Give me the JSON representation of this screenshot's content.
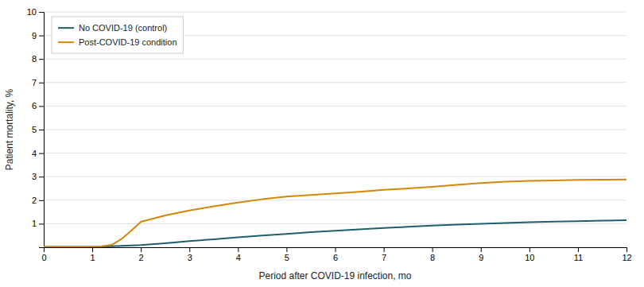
{
  "chart_data": {
    "type": "line",
    "xlabel": "Period after COVID-19 infection, mo",
    "ylabel": "Patient mortality, %",
    "series": [
      {
        "name": "No COVID-19 (control)",
        "color": "#1d5f6b",
        "x": [
          0,
          0.5,
          1.0,
          1.25,
          1.5,
          2.0,
          2.5,
          3.0,
          3.5,
          4.0,
          4.5,
          5.0,
          5.5,
          6.0,
          6.5,
          7.0,
          7.5,
          8.0,
          8.5,
          9.0,
          9.5,
          10.0,
          10.5,
          11.0,
          11.5,
          12.0
        ],
        "values": [
          0.02,
          0.02,
          0.02,
          0.03,
          0.05,
          0.09,
          0.17,
          0.26,
          0.34,
          0.42,
          0.5,
          0.57,
          0.64,
          0.7,
          0.76,
          0.82,
          0.87,
          0.92,
          0.96,
          1.0,
          1.03,
          1.06,
          1.09,
          1.11,
          1.13,
          1.15
        ]
      },
      {
        "name": "Post-COVID-19 condition",
        "color": "#d4860a",
        "x": [
          0,
          0.5,
          1.0,
          1.2,
          1.4,
          1.6,
          1.8,
          2.0,
          2.5,
          3.0,
          3.5,
          4.0,
          4.5,
          5.0,
          5.5,
          6.0,
          6.5,
          7.0,
          7.5,
          8.0,
          8.5,
          9.0,
          9.5,
          10.0,
          10.5,
          11.0,
          11.5,
          12.0
        ],
        "values": [
          0.02,
          0.02,
          0.02,
          0.04,
          0.1,
          0.35,
          0.7,
          1.08,
          1.35,
          1.56,
          1.74,
          1.9,
          2.04,
          2.15,
          2.22,
          2.29,
          2.36,
          2.44,
          2.5,
          2.57,
          2.65,
          2.73,
          2.79,
          2.82,
          2.84,
          2.86,
          2.87,
          2.88
        ]
      }
    ],
    "xlim": [
      0,
      12
    ],
    "xticks": [
      0,
      1,
      2,
      3,
      4,
      5,
      6,
      7,
      8,
      9,
      10,
      11,
      12
    ],
    "ylim": [
      0,
      10
    ],
    "yticks": [
      {
        "value": 0,
        "label": null
      },
      1,
      2,
      3,
      4,
      5,
      6,
      7,
      8,
      9,
      10
    ],
    "grid": true,
    "legend": "top-left"
  }
}
